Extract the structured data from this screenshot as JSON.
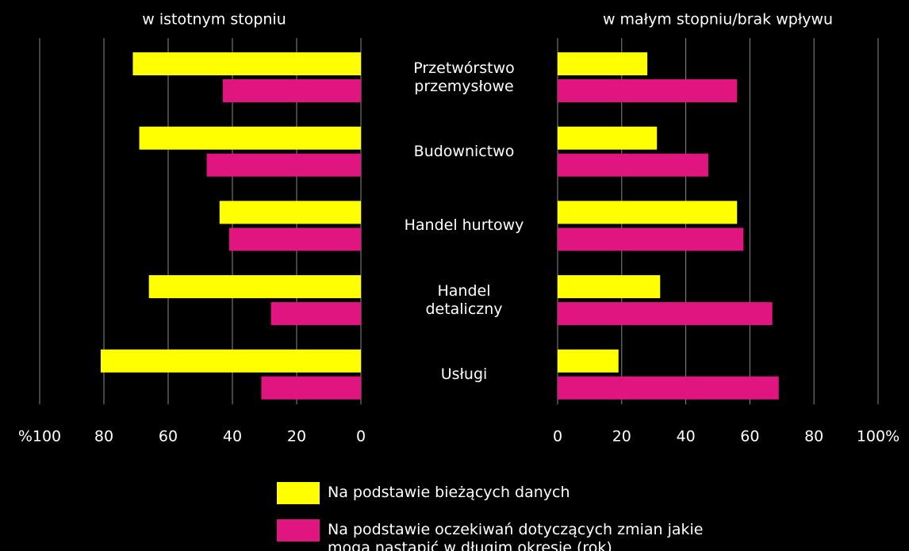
{
  "chart_data": [
    {
      "type": "bar",
      "orientation": "horizontal",
      "title": "w istotnym stopniu",
      "categories": [
        "Przetwórstwo przemysłowe",
        "Budownictwo",
        "Handel hurtowy",
        "Handel detaliczny",
        "Usługi"
      ],
      "series": [
        {
          "name": "Na podstawie bieżących danych",
          "color": "#ffff00",
          "values": [
            71,
            69,
            44,
            66,
            81
          ]
        },
        {
          "name": "Na podstawie oczekiwań dotyczących zmian jakie mogą nastąpić w długim okresie (rok)",
          "color": "#e0157f",
          "values": [
            43,
            48,
            41,
            28,
            31
          ]
        }
      ],
      "xlim": [
        100,
        0
      ],
      "xticks": [
        {
          "value": 100,
          "label": "%100"
        },
        80,
        60,
        40,
        20,
        0
      ],
      "grid": true
    },
    {
      "type": "bar",
      "orientation": "horizontal",
      "title": "w małym stopniu/brak wpływu",
      "series": [
        {
          "color": "#ffff00",
          "values": [
            28,
            31,
            56,
            32,
            19
          ]
        },
        {
          "color": "#e0157f",
          "values": [
            56,
            47,
            58,
            67,
            69
          ]
        }
      ],
      "xlim": [
        0,
        100
      ],
      "xticks": [
        0,
        20,
        40,
        60,
        80,
        {
          "value": 100,
          "label": "100%"
        }
      ],
      "grid": true
    }
  ]
}
